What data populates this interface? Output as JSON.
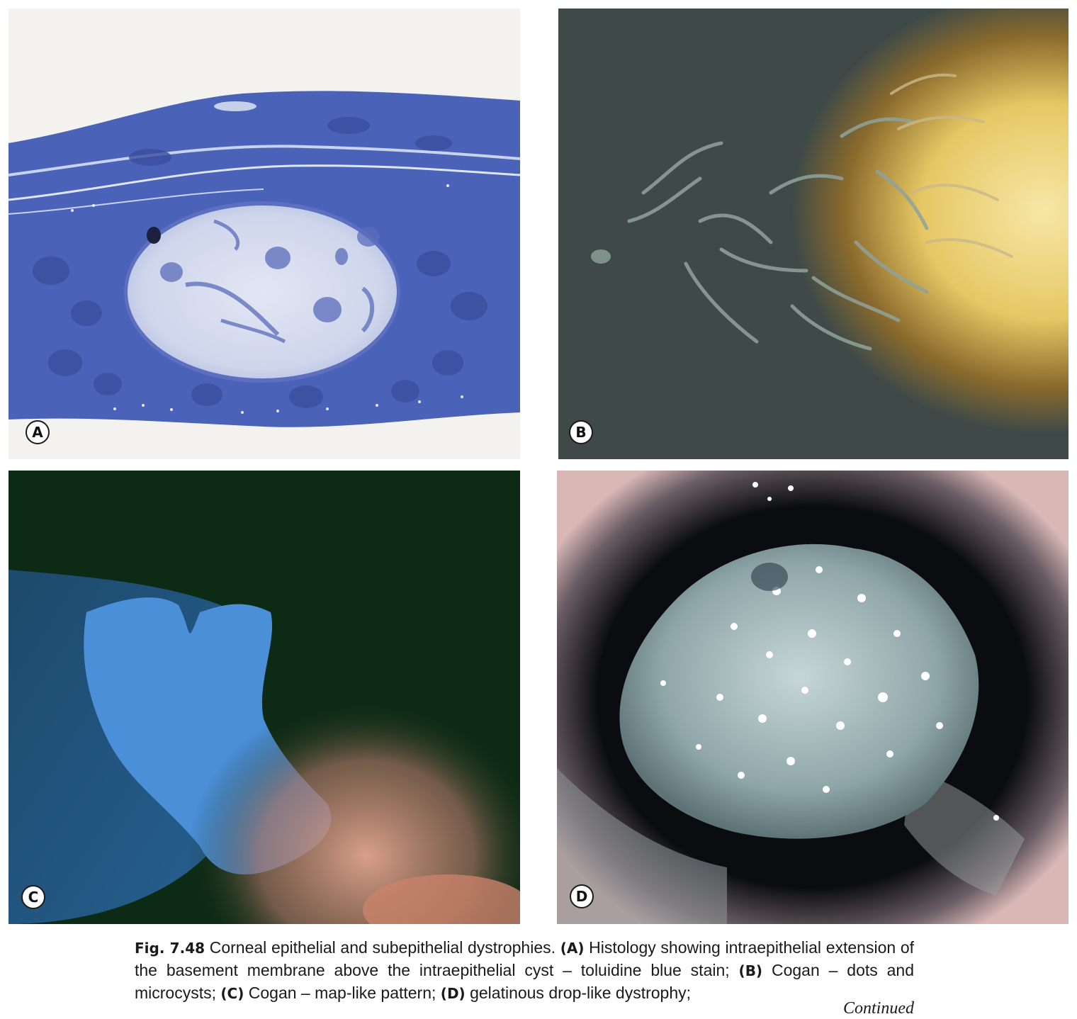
{
  "panels": [
    {
      "id": "A",
      "label": "A"
    },
    {
      "id": "B",
      "label": "B"
    },
    {
      "id": "C",
      "label": "C"
    },
    {
      "id": "D",
      "label": "D"
    }
  ],
  "caption": {
    "fig_label": "Fig. 7.48",
    "title": "Corneal epithelial and subepithelial dystrophies.",
    "a_label": "(A)",
    "a_text": "Histology showing intraepithelial extension of the basement membrane above the intraepithelial cyst – toluidine blue stain;",
    "b_label": "(B)",
    "b_text": "Cogan – dots and microcysts;",
    "c_label": "(C)",
    "c_text": "Cogan – map-like pattern;",
    "d_label": "(D)",
    "d_text": "gelatinous drop-like dystrophy;",
    "continued": "Continued"
  },
  "colors": {
    "stain_blue": "#4a62b8",
    "cyst_pale": "#d6dcef",
    "slit_dark": "#3f4a48",
    "fluor_green": "#0c2a14",
    "fluor_blue": "#4a8fd8",
    "eye_dark": "#0a0c10"
  }
}
